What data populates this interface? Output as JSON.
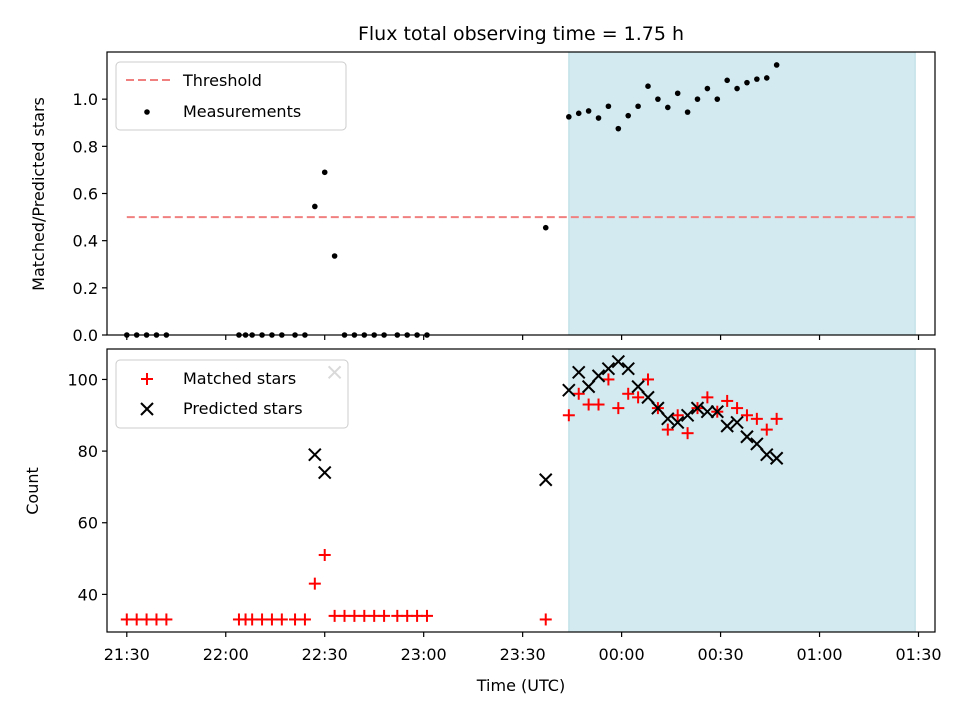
{
  "chart_data": [
    {
      "type": "scatter",
      "title": "Flux total observing time = 1.75 h",
      "xlabel": "",
      "ylabel": "Matched/Predicted stars",
      "xlim": [
        "21:24",
        "01:35"
      ],
      "ylim": [
        0,
        1.2
      ],
      "y_ticks": [
        "0.0",
        "0.2",
        "0.4",
        "0.6",
        "0.8",
        "1.0"
      ],
      "y_tick_values": [
        0,
        0.2,
        0.4,
        0.6,
        0.8,
        1.0
      ],
      "grid": false,
      "legend_position": "top-left",
      "shaded_region": {
        "from": "23:44",
        "to": "01:29",
        "color": "#d3eaf0"
      },
      "threshold": {
        "name": "Threshold",
        "value": 0.5,
        "from": "21:30",
        "to": "01:29",
        "color": "#f08080"
      },
      "series": [
        {
          "name": "Measurements",
          "marker": "dot",
          "color": "#000000",
          "points": [
            [
              "21:30",
              0
            ],
            [
              "21:33",
              0
            ],
            [
              "21:36",
              0
            ],
            [
              "21:39",
              0
            ],
            [
              "21:42",
              0
            ],
            [
              "22:04",
              0
            ],
            [
              "22:06",
              0
            ],
            [
              "22:08",
              0
            ],
            [
              "22:11",
              0
            ],
            [
              "22:14",
              0
            ],
            [
              "22:17",
              0
            ],
            [
              "22:21",
              0
            ],
            [
              "22:24",
              0
            ],
            [
              "22:27",
              0.545
            ],
            [
              "22:30",
              0.69
            ],
            [
              "22:33",
              0.335
            ],
            [
              "22:36",
              0
            ],
            [
              "22:39",
              0
            ],
            [
              "22:42",
              0
            ],
            [
              "22:45",
              0
            ],
            [
              "22:48",
              0
            ],
            [
              "22:52",
              0
            ],
            [
              "22:55",
              0
            ],
            [
              "22:58",
              0
            ],
            [
              "23:01",
              0
            ],
            [
              "23:37",
              0.455
            ],
            [
              "23:44",
              0.925
            ],
            [
              "23:47",
              0.94
            ],
            [
              "23:50",
              0.95
            ],
            [
              "23:53",
              0.92
            ],
            [
              "23:56",
              0.97
            ],
            [
              "23:59",
              0.875
            ],
            [
              "00:02",
              0.93
            ],
            [
              "00:05",
              0.97
            ],
            [
              "00:08",
              1.055
            ],
            [
              "00:11",
              1.0
            ],
            [
              "00:14",
              0.965
            ],
            [
              "00:17",
              1.025
            ],
            [
              "00:20",
              0.945
            ],
            [
              "00:23",
              1.0
            ],
            [
              "00:26",
              1.045
            ],
            [
              "00:29",
              1.0
            ],
            [
              "00:32",
              1.08
            ],
            [
              "00:35",
              1.045
            ],
            [
              "00:38",
              1.07
            ],
            [
              "00:41",
              1.085
            ],
            [
              "00:44",
              1.09
            ],
            [
              "00:47",
              1.145
            ]
          ]
        }
      ]
    },
    {
      "type": "scatter",
      "title": "",
      "xlabel": "Time (UTC)",
      "ylabel": "Count",
      "xlim": [
        "21:24",
        "01:35"
      ],
      "ylim": [
        29.5,
        108.5
      ],
      "y_ticks": [
        "40",
        "60",
        "80",
        "100"
      ],
      "y_tick_values": [
        40,
        60,
        80,
        100
      ],
      "x_ticks": [
        "21:30",
        "22:00",
        "22:30",
        "23:00",
        "23:30",
        "00:00",
        "00:30",
        "01:00",
        "01:30"
      ],
      "grid": false,
      "legend_position": "top-left",
      "shaded_region": {
        "from": "23:44",
        "to": "01:29",
        "color": "#d3eaf0"
      },
      "series": [
        {
          "name": "Matched stars",
          "marker": "plus",
          "color": "#ff0000",
          "points": [
            [
              "21:30",
              33
            ],
            [
              "21:33",
              33
            ],
            [
              "21:36",
              33
            ],
            [
              "21:39",
              33
            ],
            [
              "21:42",
              33
            ],
            [
              "22:04",
              33
            ],
            [
              "22:06",
              33
            ],
            [
              "22:08",
              33
            ],
            [
              "22:11",
              33
            ],
            [
              "22:14",
              33
            ],
            [
              "22:17",
              33
            ],
            [
              "22:21",
              33
            ],
            [
              "22:24",
              33
            ],
            [
              "22:27",
              43
            ],
            [
              "22:30",
              51
            ],
            [
              "22:33",
              34
            ],
            [
              "22:36",
              34
            ],
            [
              "22:39",
              34
            ],
            [
              "22:42",
              34
            ],
            [
              "22:45",
              34
            ],
            [
              "22:48",
              34
            ],
            [
              "22:52",
              34
            ],
            [
              "22:55",
              34
            ],
            [
              "22:58",
              34
            ],
            [
              "23:01",
              34
            ],
            [
              "23:37",
              33
            ],
            [
              "23:44",
              90
            ],
            [
              "23:47",
              96
            ],
            [
              "23:50",
              93
            ],
            [
              "23:53",
              93
            ],
            [
              "23:56",
              100
            ],
            [
              "23:59",
              92
            ],
            [
              "00:02",
              96
            ],
            [
              "00:05",
              95
            ],
            [
              "00:08",
              100
            ],
            [
              "00:11",
              92
            ],
            [
              "00:14",
              86
            ],
            [
              "00:17",
              90
            ],
            [
              "00:20",
              85
            ],
            [
              "00:23",
              92
            ],
            [
              "00:26",
              95
            ],
            [
              "00:29",
              91
            ],
            [
              "00:32",
              94
            ],
            [
              "00:35",
              92
            ],
            [
              "00:38",
              90
            ],
            [
              "00:41",
              89
            ],
            [
              "00:44",
              86
            ],
            [
              "00:47",
              89
            ]
          ]
        },
        {
          "name": "Predicted stars",
          "marker": "cross",
          "color": "#000000",
          "points": [
            [
              "22:27",
              79
            ],
            [
              "22:30",
              74
            ],
            [
              "22:33",
              102
            ],
            [
              "23:37",
              72
            ],
            [
              "23:44",
              97
            ],
            [
              "23:47",
              102
            ],
            [
              "23:50",
              98
            ],
            [
              "23:53",
              101
            ],
            [
              "23:56",
              103
            ],
            [
              "23:59",
              105
            ],
            [
              "00:02",
              103
            ],
            [
              "00:05",
              98
            ],
            [
              "00:08",
              95
            ],
            [
              "00:11",
              92
            ],
            [
              "00:14",
              89
            ],
            [
              "00:17",
              88
            ],
            [
              "00:20",
              90
            ],
            [
              "00:23",
              92
            ],
            [
              "00:26",
              91
            ],
            [
              "00:29",
              91
            ],
            [
              "00:32",
              87
            ],
            [
              "00:35",
              88
            ],
            [
              "00:38",
              84
            ],
            [
              "00:41",
              82
            ],
            [
              "00:44",
              79
            ],
            [
              "00:47",
              78
            ]
          ]
        }
      ]
    }
  ]
}
